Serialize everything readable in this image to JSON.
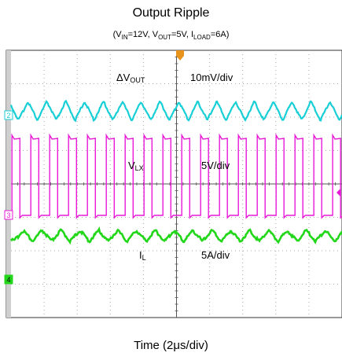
{
  "title": "Output Ripple",
  "subtitle": {
    "v_in_sym": "V",
    "v_in_sub": "IN",
    "v_in_val": "=12V, ",
    "v_out_sym": "V",
    "v_out_sub": "OUT",
    "v_out_val": "=5V, ",
    "i_load_sym": "I",
    "i_load_sub": "LOAD",
    "i_load_val": "=6A"
  },
  "xlabel": "Time (2μs/div)",
  "chart_data": {
    "type": "line",
    "title": "Output Ripple",
    "xlabel": "Time (2μs/div)",
    "x_divisions": 10,
    "y_divisions": 8,
    "grid": true,
    "time_per_div": "2μs",
    "period_div": 0.57,
    "colors": {
      "vout": "#19cfd6",
      "vlx": "#e81ad8",
      "il": "#22d71a",
      "grid": "#aaaaaa"
    },
    "series": [
      {
        "name": "ΔVOUT",
        "scale": "10mV/div",
        "marker": "2",
        "waveform": "triangle"
      },
      {
        "name": "VLX",
        "scale": "5V/div",
        "marker": "3",
        "waveform": "square"
      },
      {
        "name": "IL",
        "scale": "5A/div",
        "marker": "4",
        "waveform": "triangle"
      }
    ]
  },
  "labels": {
    "vout_sym": "ΔV",
    "vout_sub": "OUT",
    "vout_scale": "10mV/div",
    "vlx_sym": "V",
    "vlx_sub": "LX",
    "vlx_scale": "5V/div",
    "il_sym": "I",
    "il_sub": "L",
    "il_scale": "5A/div",
    "ch2": "2",
    "ch3": "3",
    "ch4": "4"
  }
}
